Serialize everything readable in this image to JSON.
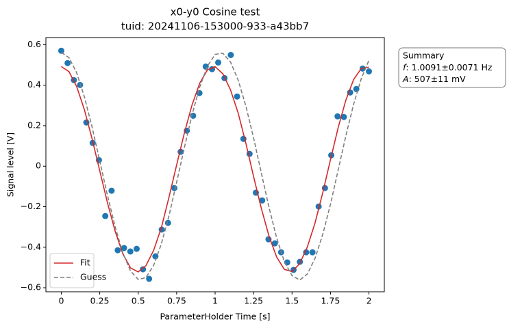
{
  "chart_data": {
    "type": "scatter",
    "title": [
      "x0-y0 Cosine test",
      "tuid: 20241106-153000-933-a43bb7"
    ],
    "xlabel": "ParameterHolder Time [s]",
    "ylabel": "Signal level [V]",
    "xlim": [
      -0.1,
      2.1
    ],
    "ylim": [
      -0.62,
      0.635
    ],
    "xticks": [
      0,
      0.25,
      0.5,
      0.75,
      1,
      1.25,
      1.5,
      1.75,
      2
    ],
    "yticks": [
      {
        "value": -0.6,
        "label": "−0.6"
      },
      {
        "value": -0.4,
        "label": "−0.4"
      },
      {
        "value": -0.2,
        "label": "−0.2"
      },
      0,
      0.2,
      0.4,
      0.6
    ],
    "legend_position": "lower left",
    "points": {
      "color": "#1f77b4",
      "x": [
        0,
        0.041,
        0.082,
        0.122,
        0.163,
        0.204,
        0.245,
        0.286,
        0.327,
        0.367,
        0.408,
        0.449,
        0.49,
        0.531,
        0.571,
        0.612,
        0.653,
        0.694,
        0.735,
        0.776,
        0.816,
        0.857,
        0.898,
        0.939,
        0.98,
        1.02,
        1.061,
        1.102,
        1.143,
        1.184,
        1.224,
        1.265,
        1.306,
        1.347,
        1.388,
        1.429,
        1.469,
        1.51,
        1.551,
        1.592,
        1.633,
        1.673,
        1.714,
        1.755,
        1.796,
        1.837,
        1.878,
        1.918,
        1.959,
        2
      ],
      "values": [
        0.57,
        0.509,
        0.425,
        0.401,
        0.216,
        0.115,
        0.03,
        -0.246,
        -0.121,
        -0.415,
        -0.404,
        -0.421,
        -0.408,
        -0.509,
        -0.556,
        -0.445,
        -0.313,
        -0.28,
        -0.108,
        0.071,
        0.175,
        0.249,
        0.361,
        0.492,
        0.479,
        0.512,
        0.435,
        0.549,
        0.344,
        0.135,
        0.061,
        -0.131,
        -0.169,
        -0.361,
        -0.381,
        -0.425,
        -0.475,
        -0.512,
        -0.472,
        -0.425,
        -0.425,
        -0.199,
        -0.108,
        0.054,
        0.246,
        0.243,
        0.364,
        0.381,
        0.482,
        0.468
      ]
    },
    "series": [
      {
        "name": "Fit",
        "color": "#d62728",
        "dash": false,
        "x": [
          0,
          0.05,
          0.1,
          0.15,
          0.2,
          0.25,
          0.3,
          0.35,
          0.4,
          0.45,
          0.5,
          0.55,
          0.6,
          0.65,
          0.7,
          0.75,
          0.8,
          0.85,
          0.9,
          0.95,
          1,
          1.05,
          1.1,
          1.15,
          1.2,
          1.25,
          1.3,
          1.35,
          1.4,
          1.45,
          1.5,
          1.55,
          1.6,
          1.65,
          1.7,
          1.75,
          1.8,
          1.85,
          1.9,
          1.95,
          2
        ],
        "values": [
          0.492,
          0.4668,
          0.3934,
          0.2795,
          0.1361,
          -0.0223,
          -0.1798,
          -0.3211,
          -0.4324,
          -0.502,
          -0.5219,
          -0.4913,
          -0.4162,
          -0.3051,
          -0.1534,
          0.0063,
          0.1634,
          0.3024,
          0.4099,
          0.4754,
          0.4913,
          0.4566,
          0.3773,
          0.2623,
          0.1133,
          -0.0505,
          -0.2071,
          -0.3441,
          -0.4484,
          -0.5092,
          -0.5202,
          -0.481,
          -0.3978,
          -0.2792,
          -0.1297,
          0.0321,
          0.1908,
          0.326,
          0.427,
          0.4826,
          0.489
        ]
      },
      {
        "name": "Guess",
        "color": "#7f7f7f",
        "dash": true,
        "x": [
          0,
          0.05,
          0.1,
          0.15,
          0.2,
          0.25,
          0.3,
          0.35,
          0.4,
          0.45,
          0.5,
          0.55,
          0.6,
          0.65,
          0.7,
          0.75,
          0.8,
          0.85,
          0.9,
          0.95,
          1,
          1.05,
          1.1,
          1.15,
          1.2,
          1.25,
          1.3,
          1.35,
          1.4,
          1.45,
          1.5,
          1.55,
          1.6,
          1.65,
          1.7,
          1.75,
          1.8,
          1.85,
          1.9,
          1.95,
          2
        ],
        "values": [
          0.562,
          0.536,
          0.461,
          0.343,
          0.194,
          0.026,
          -0.143,
          -0.299,
          -0.428,
          -0.517,
          -0.559,
          -0.55,
          -0.49,
          -0.385,
          -0.245,
          -0.079,
          0.091,
          0.254,
          0.391,
          0.494,
          0.552,
          0.558,
          0.515,
          0.425,
          0.297,
          0.14,
          -0.032,
          -0.202,
          -0.354,
          -0.471,
          -0.54,
          -0.562,
          -0.532,
          -0.454,
          -0.336,
          -0.188,
          -0.019,
          0.15,
          0.305,
          0.432,
          0.523
        ]
      }
    ],
    "annotation": {
      "title": "Summary",
      "lines": [
        {
          "symbol": "f",
          "text": ": 1.0091±0.0071 Hz"
        },
        {
          "symbol": "A",
          "text": ": 507±11 mV"
        }
      ]
    }
  }
}
